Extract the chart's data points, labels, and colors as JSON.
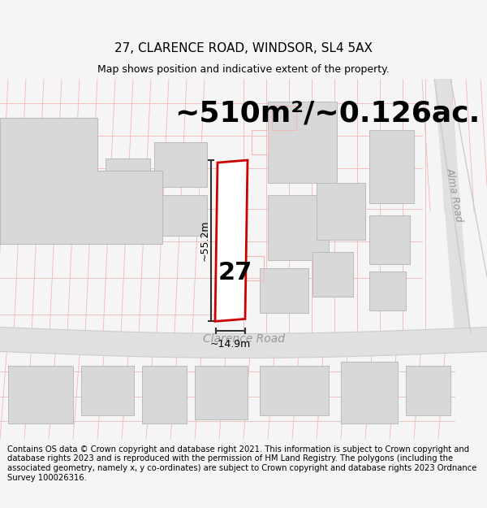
{
  "title": "27, CLARENCE ROAD, WINDSOR, SL4 5AX",
  "subtitle": "Map shows position and indicative extent of the property.",
  "area_text": "~510m²/~0.126ac.",
  "dim_width": "~14.9m",
  "dim_height": "~55.2m",
  "label_number": "27",
  "road_label": "Clarence Road",
  "road_label2": "Alma Road",
  "footer": "Contains OS data © Crown copyright and database right 2021. This information is subject to Crown copyright and database rights 2023 and is reproduced with the permission of HM Land Registry. The polygons (including the associated geometry, namely x, y co-ordinates) are subject to Crown copyright and database rights 2023 Ordnance Survey 100026316.",
  "bg_color": "#f5f5f5",
  "map_bg": "#ffffff",
  "building_fill": "#d8d8d8",
  "building_edge": "#bbbbbb",
  "plot_fill": "white",
  "plot_edge": "#cc0000",
  "road_fill": "#e0e0e0",
  "grid_color": "#f0b8b8",
  "dim_color": "#333333",
  "title_fontsize": 11,
  "subtitle_fontsize": 9,
  "area_fontsize": 26,
  "footer_fontsize": 7.2
}
